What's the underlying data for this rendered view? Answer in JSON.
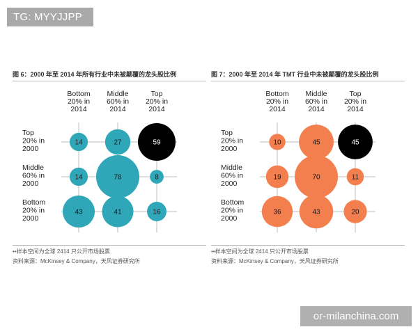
{
  "watermark_top": "TG: MYYJJPP",
  "watermark_bottom": "or-milanchina.com",
  "charts": [
    {
      "title": "图 6：2000 年至 2014 年所有行业中未被颠覆的龙头股比例",
      "note1": "••样本空间为全球 2414 只公开市场股票",
      "note2": "资料来源：McKinsey & Company，天风证券研究所"
    },
    {
      "title": "图 7：2000 年至 2014 年 TMT 行业中未被颠覆的龙头股比例",
      "note1": "••样本空间为全球 2414 只公开市场股票",
      "note2": "资料来源：McKinsey & Company，天风证券研究所"
    }
  ],
  "chart_data": [
    {
      "type": "bubble-matrix",
      "columns": [
        [
          "Bottom",
          "20% in",
          "2014"
        ],
        [
          "Middle",
          "60% in",
          "2014"
        ],
        [
          "Top",
          "20% in",
          "2014"
        ]
      ],
      "rows": [
        [
          "Top",
          "20% in",
          "2000"
        ],
        [
          "Middle",
          "60% in",
          "2000"
        ],
        [
          "Bottom",
          "20% in",
          "2000"
        ]
      ],
      "values": [
        [
          14,
          27,
          59
        ],
        [
          14,
          78,
          8
        ],
        [
          43,
          41,
          16
        ]
      ],
      "bubble_color": "#2fa7b9",
      "highlight": {
        "row": 0,
        "col": 2,
        "color": "#000000"
      }
    },
    {
      "type": "bubble-matrix",
      "columns": [
        [
          "Bottom",
          "20% in",
          "2014"
        ],
        [
          "Middle",
          "60% in",
          "2014"
        ],
        [
          "Top",
          "20% in",
          "2014"
        ]
      ],
      "rows": [
        [
          "Top",
          "20% in",
          "2000"
        ],
        [
          "Middle",
          "60% in",
          "2000"
        ],
        [
          "Bottom",
          "20% in",
          "2000"
        ]
      ],
      "values": [
        [
          10,
          45,
          45
        ],
        [
          19,
          70,
          11
        ],
        [
          36,
          43,
          20
        ]
      ],
      "bubble_color": "#f47f4e",
      "highlight": {
        "row": 0,
        "col": 2,
        "color": "#000000"
      }
    }
  ]
}
